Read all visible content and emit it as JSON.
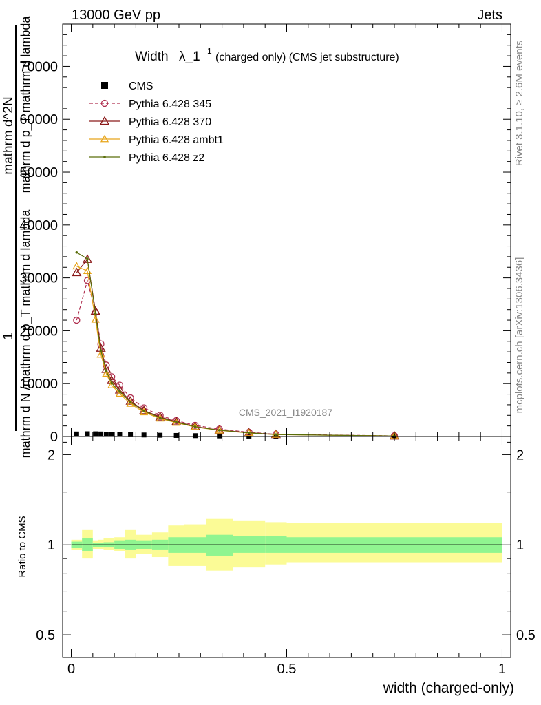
{
  "header": {
    "left": "13000 GeV pp",
    "right": "Jets"
  },
  "side_labels": {
    "rivet": "Rivet 3.1.10, ≥ 2.6M events",
    "mcplots": "mcplots.cern.ch [arXiv:1306.3436]"
  },
  "watermark": "CMS_2021_I1920187",
  "main_title": {
    "prefix": "Width",
    "lambda": "λ_1",
    "sup": "1",
    "suffix": "(charged only) (CMS jet substructure)"
  },
  "ylabel": {
    "num1": "1",
    "den1": "mathrm d N /mathrm d p_T mathrm d lambda",
    "num2": "mathrm d^2N",
    "den2": "mathrm d p_T mathrm d lambda"
  },
  "xlabel": "width (charged-only)",
  "ratio_ylabel": "Ratio to CMS",
  "colors": {
    "cms": "#000000",
    "p345": "#b03050",
    "p370": "#8b1a1a",
    "ambt1": "#e8a51a",
    "z2": "#5a6e0a",
    "band_inner": "#90f590",
    "band_outer": "#fbfb96"
  },
  "chart_data": [
    {
      "type": "line",
      "xlim": [
        -0.02,
        1.02
      ],
      "ylim": [
        0,
        78000
      ],
      "xticks": [
        0,
        0.5,
        1
      ],
      "yticks": [
        0,
        10000,
        20000,
        30000,
        40000,
        50000,
        60000,
        70000
      ],
      "ytick_labels": [
        "0",
        "10000",
        "20000",
        "30000",
        "40000",
        "50000",
        "60000",
        "70000"
      ],
      "legend_position": "top-left",
      "bins": [
        0.0,
        0.025,
        0.05,
        0.0625,
        0.075,
        0.0875,
        0.1,
        0.125,
        0.15,
        0.1875,
        0.225,
        0.2625,
        0.3125,
        0.375,
        0.45,
        0.5,
        1.0
      ],
      "x": [
        0.0125,
        0.0375,
        0.05625,
        0.06875,
        0.08125,
        0.09375,
        0.1125,
        0.1375,
        0.16875,
        0.20625,
        0.24375,
        0.2875,
        0.34375,
        0.4125,
        0.475,
        0.75
      ],
      "series": [
        {
          "name": "CMS",
          "values": [
            480,
            520,
            510,
            480,
            450,
            420,
            390,
            340,
            290,
            240,
            200,
            160,
            110,
            70,
            40,
            10
          ]
        },
        {
          "name": "Pythia 6.428 345",
          "values": [
            22000,
            29500,
            23500,
            17500,
            13500,
            11300,
            9700,
            7300,
            5400,
            4000,
            3000,
            2100,
            1400,
            800,
            420,
            120
          ]
        },
        {
          "name": "Pythia 6.428 370",
          "values": [
            31000,
            33500,
            23700,
            16700,
            12700,
            10600,
            8800,
            6700,
            4900,
            3700,
            2800,
            1900,
            1200,
            700,
            380,
            100
          ]
        },
        {
          "name": "Pythia 6.428 ambt1",
          "values": [
            32200,
            31300,
            22100,
            15500,
            11900,
            9700,
            8100,
            6200,
            4600,
            3400,
            2600,
            1800,
            1150,
            650,
            350,
            95
          ]
        },
        {
          "name": "Pythia 6.428 z2",
          "values": [
            34800,
            33600,
            23200,
            16200,
            12400,
            10100,
            8500,
            6500,
            4800,
            3550,
            2700,
            1850,
            1180,
            680,
            370,
            98
          ]
        }
      ]
    },
    {
      "type": "area",
      "title": "Ratio to CMS",
      "xlim": [
        -0.02,
        1.02
      ],
      "ylim": [
        0.42,
        2.3
      ],
      "yscale": "log",
      "yticks": [
        0.5,
        1,
        2
      ],
      "ytick_labels": [
        "0.5",
        "1",
        "2"
      ],
      "xticks": [
        0,
        0.5,
        1
      ],
      "xtick_labels": [
        "0",
        "0.5",
        "1"
      ],
      "bins": [
        0.0,
        0.025,
        0.05,
        0.0625,
        0.075,
        0.0875,
        0.1,
        0.125,
        0.15,
        0.1875,
        0.225,
        0.2625,
        0.3125,
        0.375,
        0.45,
        0.5,
        1.0
      ],
      "stat_band": [
        [
          0.975,
          1.025
        ],
        [
          0.95,
          1.05
        ],
        [
          0.985,
          1.015
        ],
        [
          0.985,
          1.015
        ],
        [
          0.98,
          1.02
        ],
        [
          0.98,
          1.02
        ],
        [
          0.97,
          1.03
        ],
        [
          0.96,
          1.04
        ],
        [
          0.97,
          1.03
        ],
        [
          0.96,
          1.04
        ],
        [
          0.94,
          1.06
        ],
        [
          0.94,
          1.06
        ],
        [
          0.92,
          1.08
        ],
        [
          0.94,
          1.07
        ],
        [
          0.94,
          1.07
        ],
        [
          0.94,
          1.06
        ]
      ],
      "total_band": [
        [
          0.96,
          1.04
        ],
        [
          0.9,
          1.12
        ],
        [
          0.97,
          1.03
        ],
        [
          0.97,
          1.04
        ],
        [
          0.96,
          1.05
        ],
        [
          0.96,
          1.05
        ],
        [
          0.95,
          1.06
        ],
        [
          0.9,
          1.12
        ],
        [
          0.93,
          1.08
        ],
        [
          0.91,
          1.1
        ],
        [
          0.85,
          1.16
        ],
        [
          0.85,
          1.17
        ],
        [
          0.82,
          1.22
        ],
        [
          0.84,
          1.2
        ],
        [
          0.86,
          1.19
        ],
        [
          0.87,
          1.18
        ]
      ],
      "reference": 1
    }
  ]
}
